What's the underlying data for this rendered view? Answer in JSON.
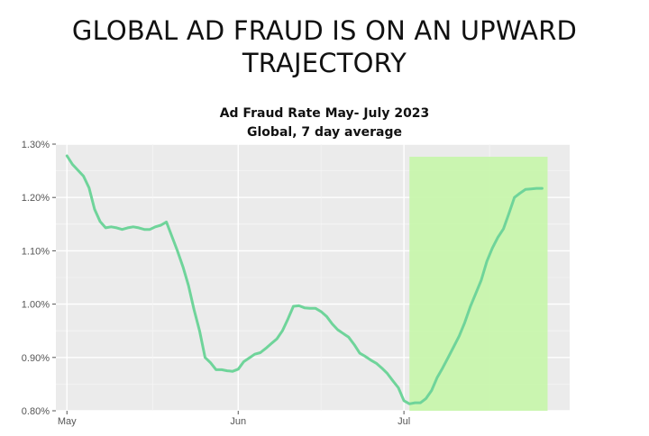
{
  "headline": {
    "line1": "GLOBAL AD FRAUD IS ON AN UPWARD",
    "line2": "TRAJECTORY"
  },
  "chart_data": {
    "type": "line",
    "title": "Ad Fraud Rate May- July 2023",
    "subtitle": "Global, 7 day average",
    "xlabel": "",
    "ylabel": "",
    "ylim": [
      0.8,
      1.3
    ],
    "y_ticks": [
      0.8,
      0.9,
      1.0,
      1.1,
      1.2,
      1.3
    ],
    "y_tick_labels": [
      "0.80%",
      "0.90%",
      "1.00%",
      "1.10%",
      "1.20%",
      "1.30%"
    ],
    "x_ticks": [
      "May",
      "Jun",
      "Jul"
    ],
    "xlim": [
      "2023-04-29",
      "2023-07-31"
    ],
    "grid": true,
    "highlight": {
      "start": "2023-07-02",
      "end": "2023-07-27",
      "color": "#c8f5ad"
    },
    "series": [
      {
        "color": "#6fd49a",
        "x": [
          "2023-05-01",
          "2023-05-02",
          "2023-05-04",
          "2023-05-05",
          "2023-05-06",
          "2023-05-07",
          "2023-05-08",
          "2023-05-09",
          "2023-05-10",
          "2023-05-11",
          "2023-05-12",
          "2023-05-13",
          "2023-05-14",
          "2023-05-15",
          "2023-05-16",
          "2023-05-17",
          "2023-05-18",
          "2023-05-19",
          "2023-05-20",
          "2023-05-21",
          "2023-05-22",
          "2023-05-23",
          "2023-05-24",
          "2023-05-25",
          "2023-05-26",
          "2023-05-27",
          "2023-05-28",
          "2023-05-29",
          "2023-05-30",
          "2023-05-31",
          "2023-06-01",
          "2023-06-02",
          "2023-06-03",
          "2023-06-04",
          "2023-06-05",
          "2023-06-06",
          "2023-06-07",
          "2023-06-08",
          "2023-06-09",
          "2023-06-10",
          "2023-06-11",
          "2023-06-12",
          "2023-06-13",
          "2023-06-14",
          "2023-06-15",
          "2023-06-16",
          "2023-06-17",
          "2023-06-18",
          "2023-06-19",
          "2023-06-20",
          "2023-06-21",
          "2023-06-22",
          "2023-06-23",
          "2023-06-24",
          "2023-06-25",
          "2023-06-26",
          "2023-06-27",
          "2023-06-28",
          "2023-06-29",
          "2023-06-30",
          "2023-07-01",
          "2023-07-02",
          "2023-07-03",
          "2023-07-04",
          "2023-07-05",
          "2023-07-06",
          "2023-07-07",
          "2023-07-08",
          "2023-07-09",
          "2023-07-10",
          "2023-07-11",
          "2023-07-12",
          "2023-07-13",
          "2023-07-14",
          "2023-07-15",
          "2023-07-16",
          "2023-07-17",
          "2023-07-18",
          "2023-07-19",
          "2023-07-20",
          "2023-07-21",
          "2023-07-22",
          "2023-07-23",
          "2023-07-24",
          "2023-07-25",
          "2023-07-26"
        ],
        "values": [
          1.278,
          1.262,
          1.24,
          1.218,
          1.178,
          1.155,
          1.143,
          1.145,
          1.143,
          1.14,
          1.143,
          1.145,
          1.143,
          1.14,
          1.14,
          1.145,
          1.148,
          1.154,
          1.127,
          1.1,
          1.07,
          1.035,
          0.99,
          0.95,
          0.9,
          0.89,
          0.877,
          0.877,
          0.875,
          0.874,
          0.878,
          0.892,
          0.899,
          0.906,
          0.909,
          0.917,
          0.926,
          0.935,
          0.95,
          0.972,
          0.996,
          0.997,
          0.993,
          0.992,
          0.992,
          0.986,
          0.977,
          0.963,
          0.952,
          0.945,
          0.938,
          0.924,
          0.908,
          0.902,
          0.895,
          0.889,
          0.88,
          0.87,
          0.856,
          0.843,
          0.819,
          0.813,
          0.815,
          0.815,
          0.823,
          0.838,
          0.862,
          0.88,
          0.9,
          0.92,
          0.94,
          0.965,
          0.995,
          1.02,
          1.045,
          1.08,
          1.105,
          1.125,
          1.141,
          1.17,
          1.2,
          1.208,
          1.215,
          1.216,
          1.217,
          1.217
        ]
      }
    ]
  }
}
